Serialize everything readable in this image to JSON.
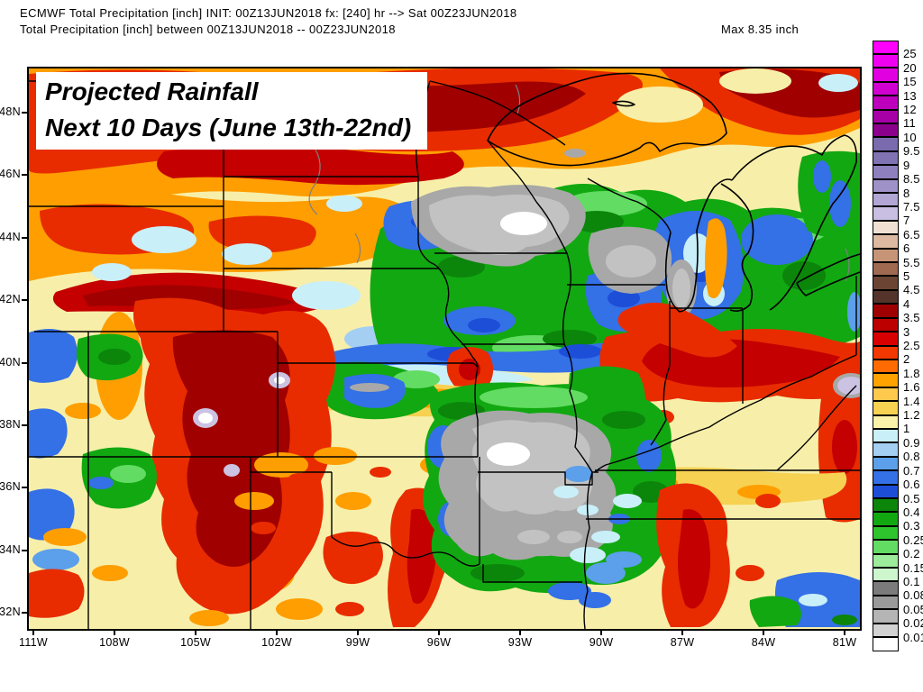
{
  "header": {
    "line1": "ECMWF Total Precipitation [inch] INIT: 00Z13JUN2018 fx: [240] hr --> Sat 00Z23JUN2018",
    "line2": "Total Precipitation [inch] between 00Z13JUN2018 -- 00Z23JUN2018",
    "max_label": "Max 8.35 inch"
  },
  "overlay_title": {
    "line1": "Projected Rainfall",
    "line2": "Next 10 Days (June 13th-22nd)"
  },
  "map": {
    "units": "inch",
    "lat_labels": [
      "48N",
      "46N",
      "44N",
      "42N",
      "40N",
      "38N",
      "36N",
      "34N",
      "32N"
    ],
    "lon_labels": [
      "111W",
      "108W",
      "105W",
      "102W",
      "99W",
      "96W",
      "93W",
      "90W",
      "87W",
      "84W",
      "81W"
    ]
  },
  "legend": {
    "entries": [
      {
        "label": "25",
        "color": "#FE00FE"
      },
      {
        "label": "20",
        "color": "#F000F0"
      },
      {
        "label": "15",
        "color": "#E000E0"
      },
      {
        "label": "13",
        "color": "#D000D0"
      },
      {
        "label": "12",
        "color": "#BC00BC"
      },
      {
        "label": "11",
        "color": "#A600A6"
      },
      {
        "label": "10",
        "color": "#8B008B"
      },
      {
        "label": "9.5",
        "color": "#7A6AAE"
      },
      {
        "label": "9",
        "color": "#8172B4"
      },
      {
        "label": "8.5",
        "color": "#8E80BE"
      },
      {
        "label": "8",
        "color": "#9F92C8"
      },
      {
        "label": "7.5",
        "color": "#B2A6D4"
      },
      {
        "label": "7",
        "color": "#C8BFE2"
      },
      {
        "label": "6.5",
        "color": "#EFE0D3"
      },
      {
        "label": "6",
        "color": "#DCB9A0"
      },
      {
        "label": "5.5",
        "color": "#C79478"
      },
      {
        "label": "5",
        "color": "#A06A50"
      },
      {
        "label": "4.5",
        "color": "#6B4434"
      },
      {
        "label": "4",
        "color": "#54342A"
      },
      {
        "label": "3.5",
        "color": "#9E0000"
      },
      {
        "label": "3",
        "color": "#BC0000"
      },
      {
        "label": "2.5",
        "color": "#D80000"
      },
      {
        "label": "2",
        "color": "#F03800"
      },
      {
        "label": "1.8",
        "color": "#FF6B00"
      },
      {
        "label": "1.6",
        "color": "#FFA200"
      },
      {
        "label": "1.4",
        "color": "#FFC94E"
      },
      {
        "label": "1.2",
        "color": "#F7D152"
      },
      {
        "label": "1",
        "color": "#FBF3A9"
      },
      {
        "label": "0.9",
        "color": "#C9EFF8"
      },
      {
        "label": "0.8",
        "color": "#A4CFF2"
      },
      {
        "label": "0.7",
        "color": "#5C9FEA"
      },
      {
        "label": "0.6",
        "color": "#3470E6"
      },
      {
        "label": "0.5",
        "color": "#1D4ED8"
      },
      {
        "label": "0.4",
        "color": "#0B860B"
      },
      {
        "label": "0.3",
        "color": "#12A812"
      },
      {
        "label": "0.25",
        "color": "#2EC42E"
      },
      {
        "label": "0.2",
        "color": "#63DC63"
      },
      {
        "label": "0.15",
        "color": "#9CEC9C"
      },
      {
        "label": "0.1",
        "color": "#CDF6CD"
      },
      {
        "label": "0.08",
        "color": "#7B7B7B"
      },
      {
        "label": "0.05",
        "color": "#9A9A9A"
      },
      {
        "label": "0.02",
        "color": "#B5B5B5"
      },
      {
        "label": "0.01",
        "color": "#D2D2D2"
      },
      {
        "label": "",
        "color": "#FFFFFF"
      }
    ]
  }
}
